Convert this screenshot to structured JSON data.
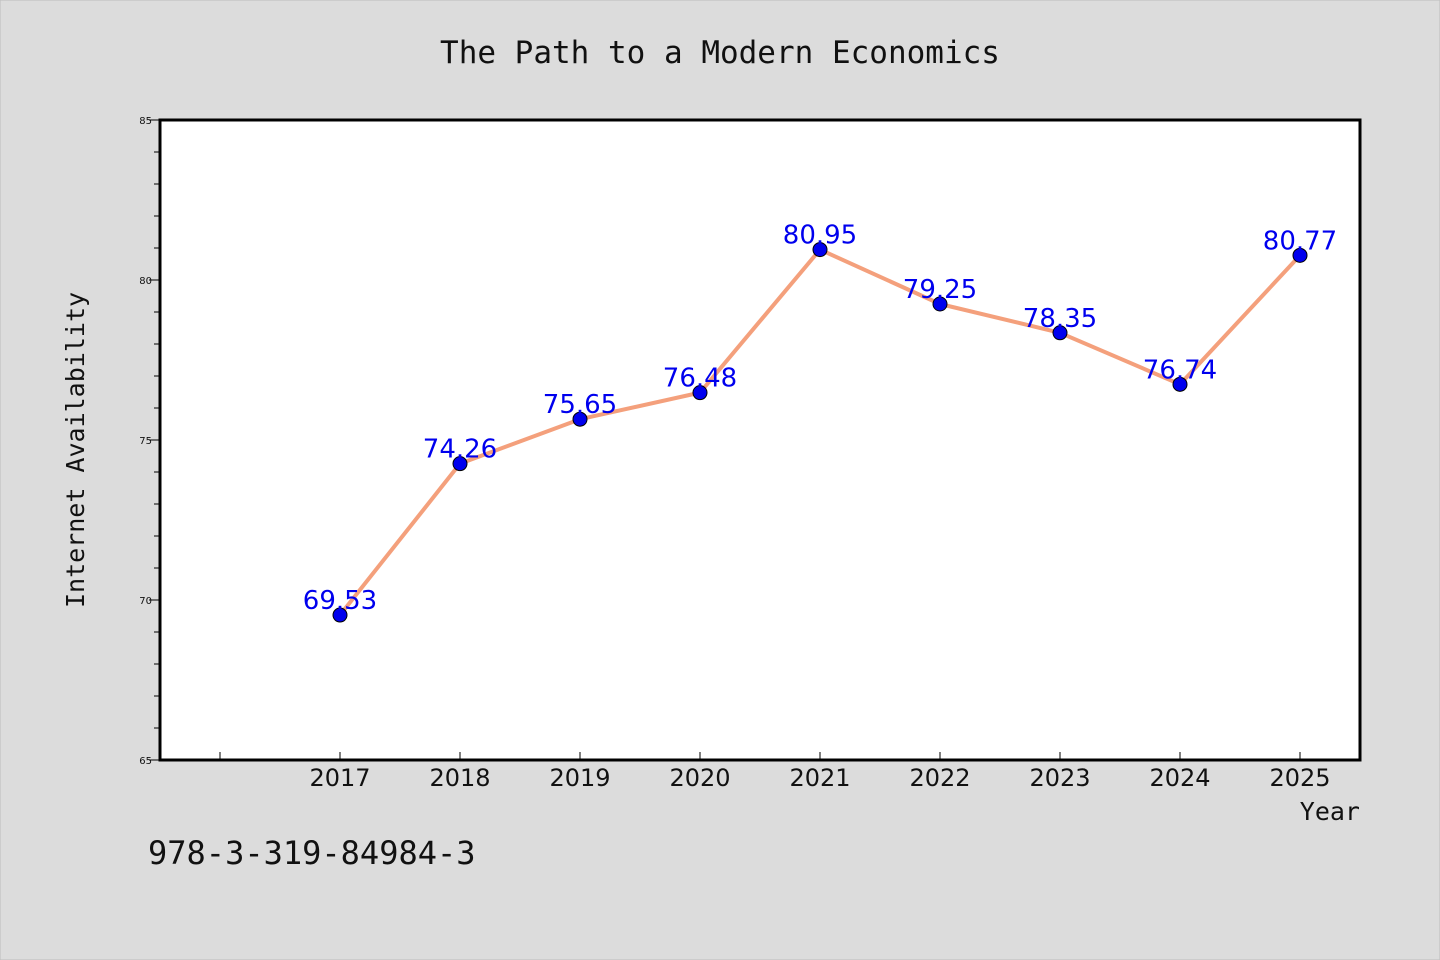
{
  "page": {
    "background": "#dcdcdc",
    "isbn": "978-3-319-84984-3"
  },
  "chart_data": {
    "type": "line",
    "title": "The Path to a Modern Economics",
    "xlabel": "Year",
    "ylabel": "Internet Availability",
    "x": [
      "2017",
      "2018",
      "2019",
      "2020",
      "2021",
      "2022",
      "2023",
      "2024",
      "2025"
    ],
    "x_tick_labels": [
      "2017",
      "2018",
      "2019",
      "2020",
      "2021",
      "2022",
      "2023",
      "2024",
      "2025"
    ],
    "xlim": [
      2015.5,
      2025.5
    ],
    "ylim": [
      65,
      85
    ],
    "y_ticks": [
      65,
      70,
      75,
      80,
      85
    ],
    "y_tick_labels": [
      "65",
      "70",
      "75",
      "80",
      "85"
    ],
    "y_minor_step": 1,
    "grid": false,
    "series": [
      {
        "values": [
          69.53,
          74.26,
          75.65,
          76.48,
          80.95,
          79.25,
          78.35,
          76.74,
          80.77
        ],
        "value_labels": [
          "69.53",
          "74.26",
          "75.65",
          "76.48",
          "80.95",
          "79.25",
          "78.35",
          "76.74",
          "80.77"
        ],
        "line_color": "#f4a07c",
        "marker_color": "#0000ee",
        "label_color": "#0000ee"
      }
    ]
  }
}
